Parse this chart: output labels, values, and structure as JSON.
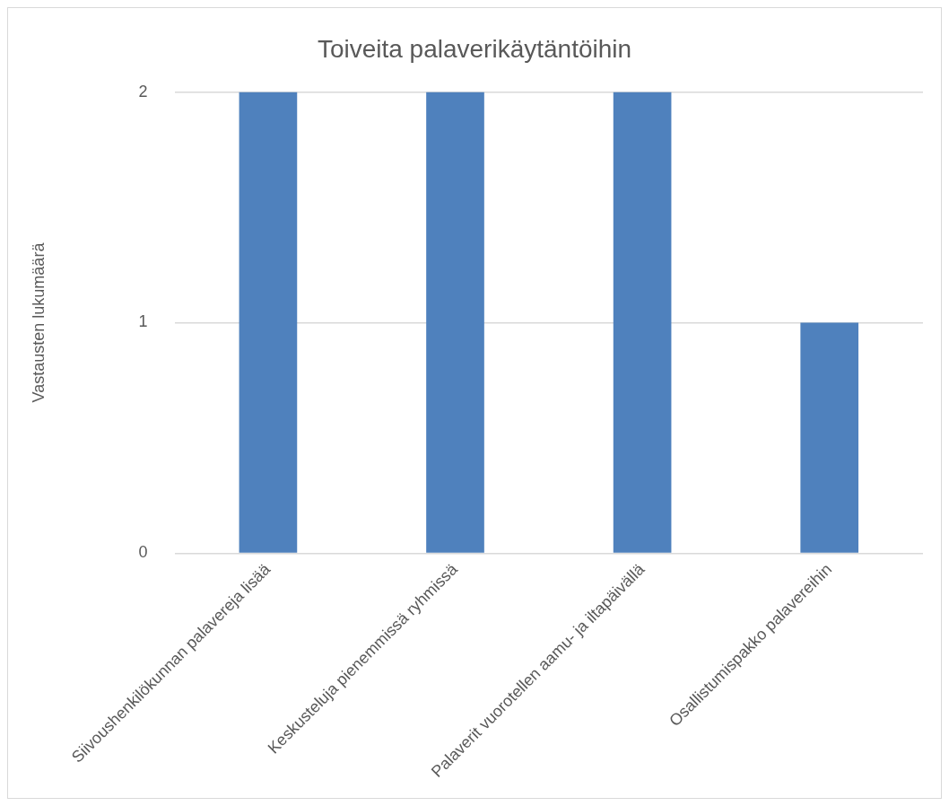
{
  "chart_data": {
    "type": "bar",
    "title": "Toiveita palaverikäytäntöihin",
    "ylabel": "Vastausten lukumäärä",
    "categories": [
      "Siivoushenkilökunnan palavereja lisää",
      "Keskusteluja pienemmissä ryhmissä",
      "Palaverit vuorotellen aamu- ja iltapäivällä",
      "Osallistumispakko palavereihin"
    ],
    "values": [
      2,
      2,
      2,
      1
    ],
    "color": "#4f81bd",
    "ylim": [
      0,
      2
    ],
    "yticks": [
      0,
      1,
      2
    ],
    "grid": "y",
    "legend": false
  }
}
